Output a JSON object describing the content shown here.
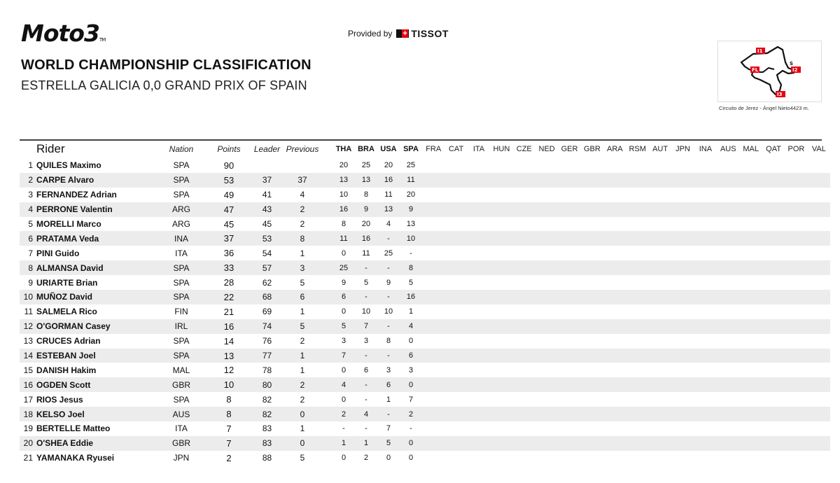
{
  "header": {
    "logo_text": "Moto3",
    "provided_by": "Provided by",
    "sponsor": "TISSOT",
    "title": "WORLD CHAMPIONSHIP CLASSIFICATION",
    "subtitle": "ESTRELLA GALICIA 0,0 GRAND PRIX OF SPAIN",
    "circuit_caption": "Circuito de Jerez - Ángel Nieto4423 m.",
    "circuit_labels": [
      "I1",
      "S",
      "FL",
      "I2",
      "I3"
    ]
  },
  "columns": {
    "rider": "Rider",
    "nation": "Nation",
    "points": "Points",
    "leader": "Leader",
    "previous": "Previous",
    "races": [
      "THA",
      "BRA",
      "USA",
      "SPA",
      "FRA",
      "CAT",
      "ITA",
      "HUN",
      "CZE",
      "NED",
      "GER",
      "GBR",
      "ARA",
      "RSM",
      "AUT",
      "JPN",
      "INA",
      "AUS",
      "MAL",
      "QAT",
      "POR",
      "VAL"
    ],
    "completed_races": 4
  },
  "rows": [
    {
      "pos": "1",
      "name": "QUILES Maximo",
      "nation": "SPA",
      "points": "90",
      "leader": "",
      "previous": "",
      "r": [
        "20",
        "25",
        "20",
        "25"
      ]
    },
    {
      "pos": "2",
      "name": "CARPE Alvaro",
      "nation": "SPA",
      "points": "53",
      "leader": "37",
      "previous": "37",
      "r": [
        "13",
        "13",
        "16",
        "11"
      ]
    },
    {
      "pos": "3",
      "name": "FERNANDEZ Adrian",
      "nation": "SPA",
      "points": "49",
      "leader": "41",
      "previous": "4",
      "r": [
        "10",
        "8",
        "11",
        "20"
      ]
    },
    {
      "pos": "4",
      "name": "PERRONE Valentin",
      "nation": "ARG",
      "points": "47",
      "leader": "43",
      "previous": "2",
      "r": [
        "16",
        "9",
        "13",
        "9"
      ]
    },
    {
      "pos": "5",
      "name": "MORELLI Marco",
      "nation": "ARG",
      "points": "45",
      "leader": "45",
      "previous": "2",
      "r": [
        "8",
        "20",
        "4",
        "13"
      ]
    },
    {
      "pos": "6",
      "name": "PRATAMA Veda",
      "nation": "INA",
      "points": "37",
      "leader": "53",
      "previous": "8",
      "r": [
        "11",
        "16",
        "-",
        "10"
      ]
    },
    {
      "pos": "7",
      "name": "PINI Guido",
      "nation": "ITA",
      "points": "36",
      "leader": "54",
      "previous": "1",
      "r": [
        "0",
        "11",
        "25",
        "-"
      ]
    },
    {
      "pos": "8",
      "name": "ALMANSA David",
      "nation": "SPA",
      "points": "33",
      "leader": "57",
      "previous": "3",
      "r": [
        "25",
        "-",
        "-",
        "8"
      ]
    },
    {
      "pos": "9",
      "name": "URIARTE Brian",
      "nation": "SPA",
      "points": "28",
      "leader": "62",
      "previous": "5",
      "r": [
        "9",
        "5",
        "9",
        "5"
      ]
    },
    {
      "pos": "10",
      "name": "MUÑOZ David",
      "nation": "SPA",
      "points": "22",
      "leader": "68",
      "previous": "6",
      "r": [
        "6",
        "-",
        "-",
        "16"
      ]
    },
    {
      "pos": "11",
      "name": "SALMELA Rico",
      "nation": "FIN",
      "points": "21",
      "leader": "69",
      "previous": "1",
      "r": [
        "0",
        "10",
        "10",
        "1"
      ]
    },
    {
      "pos": "12",
      "name": "O'GORMAN Casey",
      "nation": "IRL",
      "points": "16",
      "leader": "74",
      "previous": "5",
      "r": [
        "5",
        "7",
        "-",
        "4"
      ]
    },
    {
      "pos": "13",
      "name": "CRUCES Adrian",
      "nation": "SPA",
      "points": "14",
      "leader": "76",
      "previous": "2",
      "r": [
        "3",
        "3",
        "8",
        "0"
      ]
    },
    {
      "pos": "14",
      "name": "ESTEBAN Joel",
      "nation": "SPA",
      "points": "13",
      "leader": "77",
      "previous": "1",
      "r": [
        "7",
        "-",
        "-",
        "6"
      ]
    },
    {
      "pos": "15",
      "name": "DANISH Hakim",
      "nation": "MAL",
      "points": "12",
      "leader": "78",
      "previous": "1",
      "r": [
        "0",
        "6",
        "3",
        "3"
      ]
    },
    {
      "pos": "16",
      "name": "OGDEN Scott",
      "nation": "GBR",
      "points": "10",
      "leader": "80",
      "previous": "2",
      "r": [
        "4",
        "-",
        "6",
        "0"
      ]
    },
    {
      "pos": "17",
      "name": "RIOS Jesus",
      "nation": "SPA",
      "points": "8",
      "leader": "82",
      "previous": "2",
      "r": [
        "0",
        "-",
        "1",
        "7"
      ]
    },
    {
      "pos": "18",
      "name": "KELSO Joel",
      "nation": "AUS",
      "points": "8",
      "leader": "82",
      "previous": "0",
      "r": [
        "2",
        "4",
        "-",
        "2"
      ]
    },
    {
      "pos": "19",
      "name": "BERTELLE Matteo",
      "nation": "ITA",
      "points": "7",
      "leader": "83",
      "previous": "1",
      "r": [
        "-",
        "-",
        "7",
        "-"
      ]
    },
    {
      "pos": "20",
      "name": "O'SHEA Eddie",
      "nation": "GBR",
      "points": "7",
      "leader": "83",
      "previous": "0",
      "r": [
        "1",
        "1",
        "5",
        "0"
      ]
    },
    {
      "pos": "21",
      "name": "YAMANAKA Ryusei",
      "nation": "JPN",
      "points": "2",
      "leader": "88",
      "previous": "5",
      "r": [
        "0",
        "2",
        "0",
        "0"
      ]
    }
  ],
  "colors": {
    "accent": "#e30613",
    "stripe": "#ececec",
    "text": "#111111"
  }
}
